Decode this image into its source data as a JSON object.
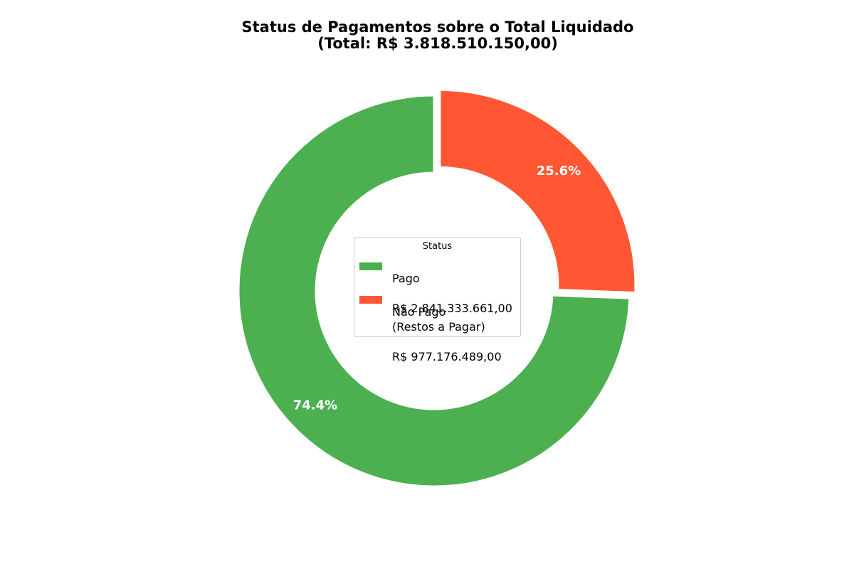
{
  "chart_data": {
    "type": "pie",
    "variant": "donut",
    "title_line1": "Status de Pagamentos sobre o Total Liquidado",
    "title_line2": "(Total: R$ 3.818.510.150,00)",
    "slices": [
      {
        "label": "Não Pago\n(Restos a Pagar)",
        "value": 977176489.0,
        "value_text": "R$ 977.176.489,00",
        "percent_text": "25.6%",
        "color": "#FF5733",
        "exploded": true
      },
      {
        "label": "Pago",
        "value": 2841333661.0,
        "value_text": "R$ 2.841.333.661,00",
        "percent_text": "74.4%",
        "color": "#4CAF50",
        "exploded": false
      }
    ],
    "legend": {
      "title": "Status",
      "placement": "center",
      "entries": [
        {
          "label": "Pago",
          "value_text": "R$ 2.841.333.661,00",
          "color": "#4CAF50"
        },
        {
          "label": "Não Pago\n(Restos a Pagar)",
          "value_text": "R$ 977.176.489,00",
          "color": "#FF5733"
        }
      ]
    },
    "start_angle": "top",
    "direction": "clockwise"
  }
}
